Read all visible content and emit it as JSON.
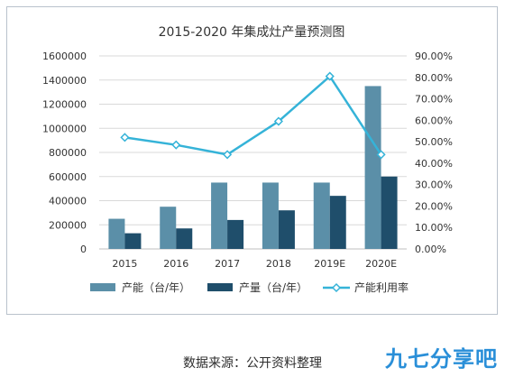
{
  "chart_data": {
    "type": "bar",
    "title": "2015-2020 年集成灶产量预测图",
    "categories": [
      "2015",
      "2016",
      "2017",
      "2018",
      "2019E",
      "2020E"
    ],
    "series": [
      {
        "name": "产能（台/年）",
        "type": "bar",
        "axis": "left",
        "color": "#5b8fa8",
        "values": [
          250000,
          350000,
          550000,
          550000,
          550000,
          1350000
        ]
      },
      {
        "name": "产量（台/年）",
        "type": "bar",
        "axis": "left",
        "color": "#1f4e6b",
        "values": [
          130000,
          170000,
          240000,
          320000,
          440000,
          600000
        ]
      },
      {
        "name": "产能利用率",
        "type": "line",
        "axis": "right",
        "color": "#35b3d8",
        "values": [
          52.0,
          48.5,
          44.0,
          59.5,
          80.5,
          44.0
        ]
      }
    ],
    "y_left": {
      "min": 0,
      "max": 1600000,
      "step": 200000,
      "ticks": [
        "0",
        "200000",
        "400000",
        "600000",
        "800000",
        "1000000",
        "1200000",
        "1400000",
        "1600000"
      ]
    },
    "y_right": {
      "min": 0,
      "max": 90,
      "step": 10,
      "ticks": [
        "0.00%",
        "10.00%",
        "20.00%",
        "30.00%",
        "40.00%",
        "50.00%",
        "60.00%",
        "70.00%",
        "80.00%",
        "90.00%"
      ]
    },
    "grid": true,
    "legend_position": "bottom"
  },
  "source_note": "数据来源：公开资料整理",
  "watermark": "九七分享吧"
}
